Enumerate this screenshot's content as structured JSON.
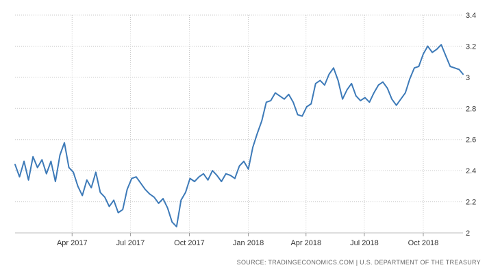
{
  "chart_data": {
    "type": "line",
    "title": "",
    "xlabel": "",
    "ylabel": "",
    "x_range": [
      "2017-01-02",
      "2018-12-02"
    ],
    "ylim": [
      2.0,
      3.4
    ],
    "grid": true,
    "line_color": "#3d7ab8",
    "grid_color": "#c8c8c8",
    "x_ticks": [
      {
        "date": "2017-04-01",
        "label": "Apr 2017"
      },
      {
        "date": "2017-07-01",
        "label": "Jul 2017"
      },
      {
        "date": "2017-10-01",
        "label": "Oct 2017"
      },
      {
        "date": "2018-01-01",
        "label": "Jan 2018"
      },
      {
        "date": "2018-04-01",
        "label": "Apr 2018"
      },
      {
        "date": "2018-07-01",
        "label": "Jul 2018"
      },
      {
        "date": "2018-10-01",
        "label": "Oct 2018"
      }
    ],
    "y_ticks": [
      {
        "value": 2.0,
        "label": "2"
      },
      {
        "value": 2.2,
        "label": "2.2"
      },
      {
        "value": 2.4,
        "label": "2.4"
      },
      {
        "value": 2.6,
        "label": "2.6"
      },
      {
        "value": 2.8,
        "label": "2.8"
      },
      {
        "value": 3.0,
        "label": "3"
      },
      {
        "value": 3.2,
        "label": "3.2"
      },
      {
        "value": 3.4,
        "label": "3.4"
      }
    ],
    "series": [
      {
        "x": [
          "2017-01-02",
          "2017-01-09",
          "2017-01-16",
          "2017-01-23",
          "2017-01-30",
          "2017-02-06",
          "2017-02-13",
          "2017-02-20",
          "2017-02-27",
          "2017-03-06",
          "2017-03-13",
          "2017-03-20",
          "2017-03-27",
          "2017-04-03",
          "2017-04-10",
          "2017-04-17",
          "2017-04-24",
          "2017-05-01",
          "2017-05-08",
          "2017-05-15",
          "2017-05-22",
          "2017-05-29",
          "2017-06-05",
          "2017-06-12",
          "2017-06-19",
          "2017-06-26",
          "2017-07-03",
          "2017-07-10",
          "2017-07-17",
          "2017-07-24",
          "2017-07-31",
          "2017-08-07",
          "2017-08-14",
          "2017-08-21",
          "2017-08-28",
          "2017-09-04",
          "2017-09-11",
          "2017-09-18",
          "2017-09-25",
          "2017-10-02",
          "2017-10-09",
          "2017-10-16",
          "2017-10-23",
          "2017-10-30",
          "2017-11-06",
          "2017-11-13",
          "2017-11-20",
          "2017-11-27",
          "2017-12-04",
          "2017-12-11",
          "2017-12-18",
          "2017-12-25",
          "2018-01-01",
          "2018-01-08",
          "2018-01-15",
          "2018-01-22",
          "2018-01-29",
          "2018-02-05",
          "2018-02-12",
          "2018-02-19",
          "2018-02-26",
          "2018-03-05",
          "2018-03-12",
          "2018-03-19",
          "2018-03-26",
          "2018-04-02",
          "2018-04-09",
          "2018-04-16",
          "2018-04-23",
          "2018-04-30",
          "2018-05-07",
          "2018-05-14",
          "2018-05-21",
          "2018-05-28",
          "2018-06-04",
          "2018-06-11",
          "2018-06-18",
          "2018-06-25",
          "2018-07-02",
          "2018-07-09",
          "2018-07-16",
          "2018-07-23",
          "2018-07-30",
          "2018-08-06",
          "2018-08-13",
          "2018-08-20",
          "2018-08-27",
          "2018-09-03",
          "2018-09-10",
          "2018-09-17",
          "2018-09-24",
          "2018-10-01",
          "2018-10-08",
          "2018-10-15",
          "2018-10-22",
          "2018-10-29",
          "2018-11-05",
          "2018-11-12",
          "2018-11-19",
          "2018-11-26",
          "2018-12-02"
        ],
        "values": [
          2.44,
          2.36,
          2.46,
          2.34,
          2.49,
          2.42,
          2.47,
          2.38,
          2.46,
          2.33,
          2.5,
          2.58,
          2.42,
          2.39,
          2.3,
          2.24,
          2.34,
          2.29,
          2.39,
          2.26,
          2.23,
          2.17,
          2.21,
          2.13,
          2.15,
          2.28,
          2.35,
          2.36,
          2.32,
          2.28,
          2.25,
          2.23,
          2.19,
          2.22,
          2.16,
          2.07,
          2.04,
          2.21,
          2.26,
          2.35,
          2.33,
          2.36,
          2.38,
          2.34,
          2.4,
          2.37,
          2.33,
          2.38,
          2.37,
          2.35,
          2.43,
          2.46,
          2.41,
          2.55,
          2.64,
          2.72,
          2.84,
          2.85,
          2.9,
          2.88,
          2.86,
          2.89,
          2.84,
          2.76,
          2.75,
          2.81,
          2.83,
          2.96,
          2.98,
          2.95,
          3.02,
          3.06,
          2.98,
          2.86,
          2.92,
          2.96,
          2.88,
          2.85,
          2.87,
          2.84,
          2.9,
          2.95,
          2.97,
          2.93,
          2.86,
          2.82,
          2.86,
          2.9,
          2.99,
          3.06,
          3.07,
          3.15,
          3.2,
          3.16,
          3.18,
          3.21,
          3.14,
          3.07,
          3.06,
          3.05,
          3.02
        ]
      }
    ]
  },
  "source": {
    "text": "SOURCE: TRADINGECONOMICS.COM  |  U.S. DEPARTMENT OF THE TREASURY"
  }
}
